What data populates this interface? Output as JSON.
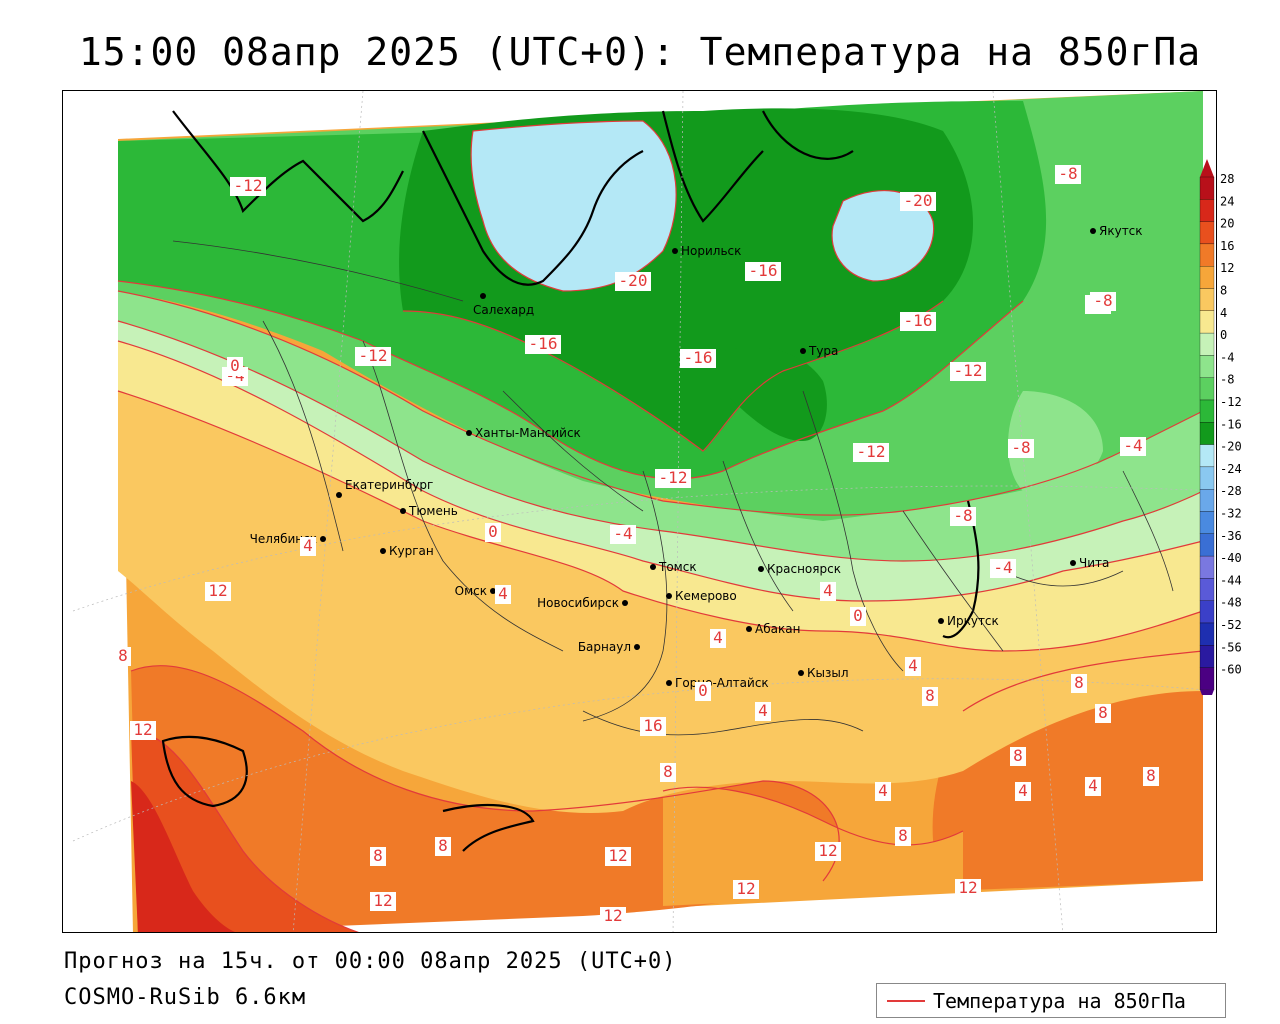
{
  "title": "15:00 08апр 2025 (UTC+0): Температура на 850гПа",
  "footer": {
    "forecast": "Прогноз на 15ч. от 00:00 08апр 2025 (UTC+0)",
    "model": "COSMO-RuSib 6.6км"
  },
  "legend": {
    "label": "Температура на 850гПа",
    "line_color": "#e23a3a"
  },
  "colors": {
    "isoline": "#e23a3a",
    "t_m60": "#4b0082",
    "t_m56": "#2a1aa0",
    "t_m52": "#1e2fb0",
    "t_m48": "#3b40c8",
    "t_m44": "#5a5ad8",
    "t_m40": "#7a78e0",
    "t_m36": "#3a6fd4",
    "t_m32": "#4a8ae0",
    "t_m28": "#6aa8ea",
    "t_m24": "#8ac8f0",
    "t_m20": "#b4e8f6",
    "t_m16": "#129a1c",
    "t_m12": "#2cb838",
    "t_m8": "#5cd060",
    "t_m4": "#8ee48c",
    "t_0": "#c6f2b8",
    "t_4": "#f8e890",
    "t_8": "#fac860",
    "t_12": "#f6a63a",
    "t_16": "#f07a28",
    "t_20": "#e8501e",
    "t_24": "#d8281a",
    "t_28": "#b8101a"
  },
  "colorbar": {
    "ticks": [
      "28",
      "24",
      "20",
      "16",
      "12",
      "8",
      "4",
      "0",
      "-4",
      "-8",
      "-12",
      "-16",
      "-20",
      "-24",
      "-28",
      "-32",
      "-36",
      "-40",
      "-44",
      "-48",
      "-52",
      "-56",
      "-60"
    ],
    "swatch_keys": [
      "t_28",
      "t_24",
      "t_20",
      "t_16",
      "t_12",
      "t_8",
      "t_4",
      "t_0",
      "t_m4",
      "t_m8",
      "t_m12",
      "t_m16",
      "t_m20",
      "t_m24",
      "t_m28",
      "t_m32",
      "t_m36",
      "t_m40",
      "t_m44",
      "t_m48",
      "t_m52",
      "t_m56",
      "t_m60"
    ]
  },
  "cities": [
    {
      "name": "Якутск"
    },
    {
      "name": "Норильск"
    },
    {
      "name": "Салехард"
    },
    {
      "name": "Тура"
    },
    {
      "name": "Ханты-Мансийск"
    },
    {
      "name": "Екатеринбург"
    },
    {
      "name": "Тюмень"
    },
    {
      "name": "Челябинск"
    },
    {
      "name": "Курган"
    },
    {
      "name": "Омск"
    },
    {
      "name": "Томск"
    },
    {
      "name": "Красноярск"
    },
    {
      "name": "Новосибирск"
    },
    {
      "name": "Кемерово"
    },
    {
      "name": "Абакан"
    },
    {
      "name": "Иркутск"
    },
    {
      "name": "Барнаул"
    },
    {
      "name": "Кызыл"
    },
    {
      "name": "Горно-Алтайск"
    },
    {
      "name": "Чита"
    }
  ],
  "isoline_labels": [
    "-12",
    "-8",
    "-20",
    "-20",
    "-16",
    "-16",
    "-16",
    "-16",
    "-12",
    "-12",
    "-12",
    "-12",
    "-8",
    "-8",
    "-8",
    "-8",
    "-4",
    "-4",
    "-4",
    "-4",
    "0",
    "0",
    "0",
    "4",
    "4",
    "4",
    "4",
    "4",
    "4",
    "4",
    "4",
    "4",
    "8",
    "8",
    "8",
    "8",
    "8",
    "8",
    "8",
    "8",
    "8",
    "8",
    "12",
    "12",
    "12",
    "12",
    "12",
    "12",
    "12",
    "12",
    "16",
    "0",
    "4",
    "4"
  ]
}
